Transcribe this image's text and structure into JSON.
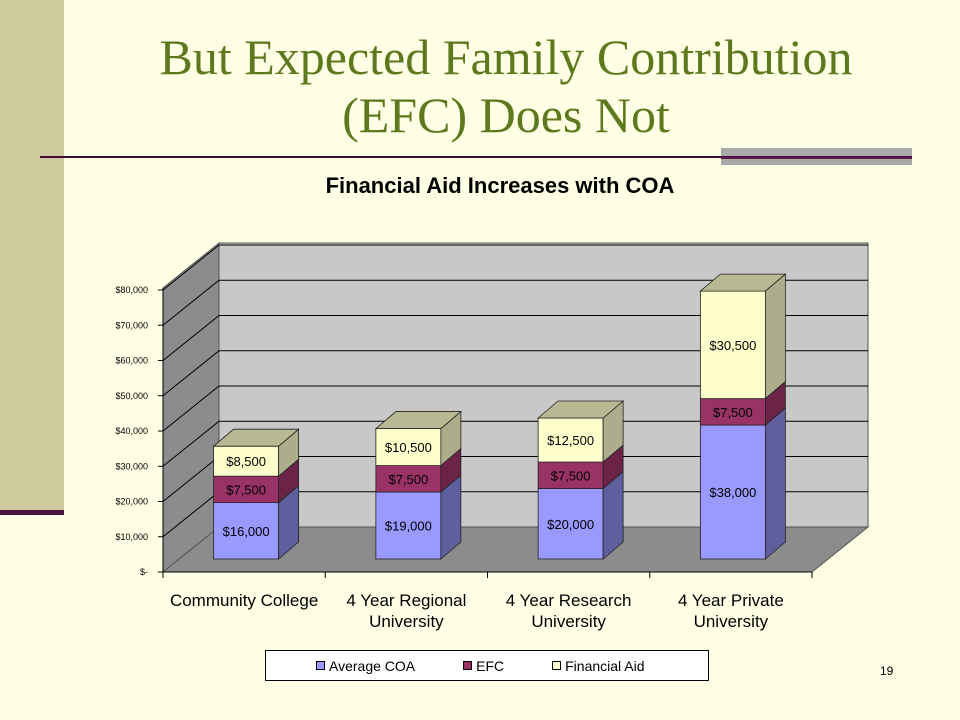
{
  "slide": {
    "title_line1": "But Expected Family Contribution",
    "title_line2": "(EFC) Does Not",
    "page_number": "19"
  },
  "chart_data": {
    "type": "bar",
    "stacked": true,
    "three_d": true,
    "title": "Financial Aid Increases with COA",
    "categories": [
      [
        "Community College"
      ],
      [
        "4 Year Regional",
        "University"
      ],
      [
        "4 Year Research",
        "University"
      ],
      [
        "4 Year Private",
        "University"
      ]
    ],
    "series": [
      {
        "name": "Average COA",
        "color": "#9999ff",
        "values": [
          16000,
          19000,
          20000,
          38000
        ],
        "labels": [
          "$16,000",
          "$19,000",
          "$20,000",
          "$38,000"
        ]
      },
      {
        "name": "EFC",
        "color": "#993366",
        "values": [
          7500,
          7500,
          7500,
          7500
        ],
        "labels": [
          "$7,500",
          "$7,500",
          "$7,500",
          "$7,500"
        ]
      },
      {
        "name": "Financial Aid",
        "color": "#ffffcc",
        "values": [
          8500,
          10500,
          12500,
          30500
        ],
        "labels": [
          "$8,500",
          "$10,500",
          "$12,500",
          "$30,500"
        ]
      }
    ],
    "yticks": [
      "$-",
      "$10,000",
      "$20,000",
      "$30,000",
      "$40,000",
      "$50,000",
      "$60,000",
      "$70,000",
      "$80,000"
    ],
    "ylim": [
      0,
      80000
    ],
    "grid": true,
    "legend_position": "bottom"
  }
}
